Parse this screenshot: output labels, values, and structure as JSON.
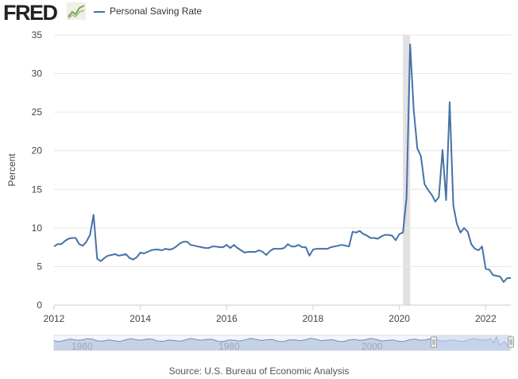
{
  "header": {
    "logo_text": "FRED",
    "logo_icon": "chart-line-icon"
  },
  "legend": {
    "label": "Personal Saving Rate"
  },
  "colors": {
    "series": "#4572a7",
    "recession": "#e1e1e1",
    "grid": "#e6e6e6",
    "navigator_fill": "#c5d2e6",
    "navigator_line": "#6f8fbf",
    "navigator_selection": "#c8d4ec"
  },
  "chart_data": {
    "type": "line",
    "title": "",
    "xlabel": "",
    "ylabel": "Percent",
    "xlim": [
      "2012-01",
      "2022-08"
    ],
    "ylim": [
      0,
      35
    ],
    "yticks": [
      0,
      5,
      10,
      15,
      20,
      25,
      30,
      35
    ],
    "xticks": [
      "2012",
      "2014",
      "2016",
      "2018",
      "2020",
      "2022"
    ],
    "grid": true,
    "legend_position": "top-left",
    "recession_shading": [
      {
        "start": "2020-02",
        "end": "2020-04"
      }
    ],
    "series": [
      {
        "name": "Personal Saving Rate",
        "x": [
          "2012-01",
          "2012-02",
          "2012-03",
          "2012-04",
          "2012-05",
          "2012-06",
          "2012-07",
          "2012-08",
          "2012-09",
          "2012-10",
          "2012-11",
          "2012-12",
          "2013-01",
          "2013-02",
          "2013-03",
          "2013-04",
          "2013-05",
          "2013-06",
          "2013-07",
          "2013-08",
          "2013-09",
          "2013-10",
          "2013-11",
          "2013-12",
          "2014-01",
          "2014-02",
          "2014-03",
          "2014-04",
          "2014-05",
          "2014-06",
          "2014-07",
          "2014-08",
          "2014-09",
          "2014-10",
          "2014-11",
          "2014-12",
          "2015-01",
          "2015-02",
          "2015-03",
          "2015-04",
          "2015-05",
          "2015-06",
          "2015-07",
          "2015-08",
          "2015-09",
          "2015-10",
          "2015-11",
          "2015-12",
          "2016-01",
          "2016-02",
          "2016-03",
          "2016-04",
          "2016-05",
          "2016-06",
          "2016-07",
          "2016-08",
          "2016-09",
          "2016-10",
          "2016-11",
          "2016-12",
          "2017-01",
          "2017-02",
          "2017-03",
          "2017-04",
          "2017-05",
          "2017-06",
          "2017-07",
          "2017-08",
          "2017-09",
          "2017-10",
          "2017-11",
          "2017-12",
          "2018-01",
          "2018-02",
          "2018-03",
          "2018-04",
          "2018-05",
          "2018-06",
          "2018-07",
          "2018-08",
          "2018-09",
          "2018-10",
          "2018-11",
          "2018-12",
          "2019-01",
          "2019-02",
          "2019-03",
          "2019-04",
          "2019-05",
          "2019-06",
          "2019-07",
          "2019-08",
          "2019-09",
          "2019-10",
          "2019-11",
          "2019-12",
          "2020-01",
          "2020-02",
          "2020-03",
          "2020-04",
          "2020-05",
          "2020-06",
          "2020-07",
          "2020-08",
          "2020-09",
          "2020-10",
          "2020-11",
          "2020-12",
          "2021-01",
          "2021-02",
          "2021-03",
          "2021-04",
          "2021-05",
          "2021-06",
          "2021-07",
          "2021-08",
          "2021-09",
          "2021-10",
          "2021-11",
          "2021-12",
          "2022-01",
          "2022-02",
          "2022-03",
          "2022-04",
          "2022-05",
          "2022-06",
          "2022-07",
          "2022-08"
        ],
        "values": [
          7.6,
          7.9,
          7.9,
          8.3,
          8.6,
          8.7,
          8.7,
          7.9,
          7.7,
          8.2,
          9.1,
          11.7,
          6.0,
          5.7,
          6.1,
          6.4,
          6.5,
          6.6,
          6.4,
          6.5,
          6.6,
          6.1,
          5.9,
          6.2,
          6.8,
          6.7,
          6.9,
          7.1,
          7.2,
          7.2,
          7.1,
          7.3,
          7.2,
          7.3,
          7.6,
          8.0,
          8.2,
          8.2,
          7.8,
          7.7,
          7.6,
          7.5,
          7.4,
          7.4,
          7.6,
          7.6,
          7.5,
          7.5,
          7.8,
          7.4,
          7.8,
          7.4,
          7.1,
          6.8,
          6.9,
          6.9,
          6.9,
          7.1,
          6.9,
          6.5,
          7.0,
          7.3,
          7.3,
          7.3,
          7.4,
          7.9,
          7.6,
          7.6,
          7.8,
          7.5,
          7.5,
          6.4,
          7.2,
          7.3,
          7.3,
          7.3,
          7.3,
          7.5,
          7.6,
          7.7,
          7.8,
          7.7,
          7.6,
          9.5,
          9.4,
          9.6,
          9.2,
          9.0,
          8.7,
          8.7,
          8.6,
          8.9,
          9.1,
          9.1,
          9.0,
          8.4,
          9.2,
          9.4,
          13.9,
          33.8,
          25.2,
          20.3,
          19.3,
          15.7,
          14.9,
          14.3,
          13.4,
          14.0,
          20.1,
          13.6,
          26.3,
          12.9,
          10.5,
          9.4,
          10.0,
          9.5,
          7.9,
          7.3,
          7.1,
          7.6,
          4.7,
          4.6,
          3.9,
          3.8,
          3.7,
          3.0,
          3.5,
          3.5
        ]
      }
    ]
  },
  "navigator": {
    "tick_labels": [
      "1960",
      "1980",
      "2000"
    ]
  },
  "source": "Source: U.S. Bureau of Economic Analysis"
}
